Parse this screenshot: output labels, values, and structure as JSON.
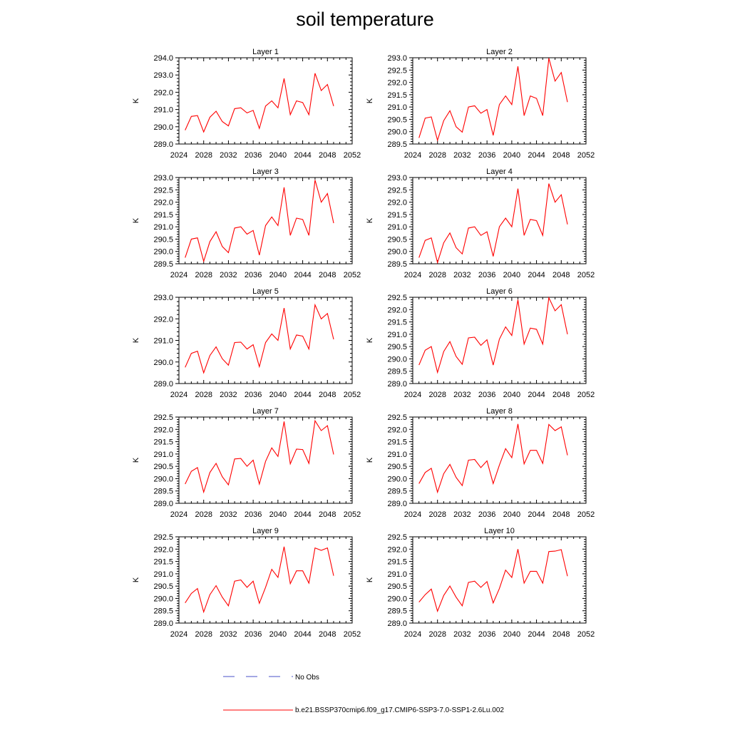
{
  "figure": {
    "title": "soil temperature"
  },
  "legend": {
    "obs_label": "No Obs",
    "model_label": "b.e21.BSSP370cmip6.f09_g17.CMIP6-SSP3-7.0-SSP1-2.6Lu.002",
    "obs_color": "#4a50c8",
    "model_color": "#ff0000"
  },
  "chart_data": [
    {
      "type": "line",
      "title": "Layer 1",
      "ylabel": "K",
      "xlim": [
        2024,
        2052
      ],
      "ylim": [
        289.0,
        294.0
      ],
      "xticks": [
        2024,
        2028,
        2032,
        2036,
        2040,
        2044,
        2048,
        2052
      ],
      "yticks": [
        289.0,
        290.0,
        291.0,
        292.0,
        293.0,
        294.0
      ],
      "x": [
        2025,
        2026,
        2027,
        2028,
        2029,
        2030,
        2031,
        2032,
        2033,
        2034,
        2035,
        2036,
        2037,
        2038,
        2039,
        2040,
        2041,
        2042,
        2043,
        2044,
        2045,
        2046,
        2047,
        2048,
        2049
      ],
      "series": [
        {
          "name": "b.e21.BSSP370cmip6.f09_g17.CMIP6-SSP3-7.0-SSP1-2.6Lu.002",
          "values": [
            289.8,
            290.6,
            290.65,
            289.7,
            290.55,
            290.9,
            290.3,
            290.05,
            291.05,
            291.1,
            290.8,
            290.95,
            289.9,
            291.2,
            291.5,
            291.1,
            292.8,
            290.7,
            291.5,
            291.4,
            290.7,
            293.1,
            292.1,
            292.45,
            291.2
          ]
        }
      ]
    },
    {
      "type": "line",
      "title": "Layer 2",
      "ylabel": "K",
      "xlim": [
        2024,
        2052
      ],
      "ylim": [
        289.5,
        293.0
      ],
      "xticks": [
        2024,
        2028,
        2032,
        2036,
        2040,
        2044,
        2048,
        2052
      ],
      "yticks": [
        289.5,
        290.0,
        290.5,
        291.0,
        291.5,
        292.0,
        292.5,
        293.0
      ],
      "x": [
        2025,
        2026,
        2027,
        2028,
        2029,
        2030,
        2031,
        2032,
        2033,
        2034,
        2035,
        2036,
        2037,
        2038,
        2039,
        2040,
        2041,
        2042,
        2043,
        2044,
        2045,
        2046,
        2047,
        2048,
        2049
      ],
      "series": [
        {
          "name": "b.e21.BSSP370cmip6.f09_g17.CMIP6-SSP3-7.0-SSP1-2.6Lu.002",
          "values": [
            289.75,
            290.55,
            290.6,
            289.65,
            290.45,
            290.85,
            290.2,
            289.98,
            291.0,
            291.05,
            290.75,
            290.9,
            289.85,
            291.1,
            291.45,
            291.1,
            292.65,
            290.65,
            291.45,
            291.35,
            290.65,
            292.98,
            292.05,
            292.4,
            291.2
          ]
        }
      ]
    },
    {
      "type": "line",
      "title": "Layer 3",
      "ylabel": "K",
      "xlim": [
        2024,
        2052
      ],
      "ylim": [
        289.5,
        293.0
      ],
      "xticks": [
        2024,
        2028,
        2032,
        2036,
        2040,
        2044,
        2048,
        2052
      ],
      "yticks": [
        289.5,
        290.0,
        290.5,
        291.0,
        291.5,
        292.0,
        292.5,
        293.0
      ],
      "x": [
        2025,
        2026,
        2027,
        2028,
        2029,
        2030,
        2031,
        2032,
        2033,
        2034,
        2035,
        2036,
        2037,
        2038,
        2039,
        2040,
        2041,
        2042,
        2043,
        2044,
        2045,
        2046,
        2047,
        2048,
        2049
      ],
      "series": [
        {
          "name": "b.e21.BSSP370cmip6.f09_g17.CMIP6-SSP3-7.0-SSP1-2.6Lu.002",
          "values": [
            289.75,
            290.5,
            290.55,
            289.6,
            290.4,
            290.8,
            290.2,
            289.95,
            290.95,
            291.0,
            290.7,
            290.85,
            289.85,
            291.05,
            291.4,
            291.05,
            292.6,
            290.65,
            291.35,
            291.3,
            290.65,
            292.9,
            292.0,
            292.35,
            291.15
          ]
        }
      ]
    },
    {
      "type": "line",
      "title": "Layer 4",
      "ylabel": "K",
      "xlim": [
        2024,
        2052
      ],
      "ylim": [
        289.5,
        293.0
      ],
      "xticks": [
        2024,
        2028,
        2032,
        2036,
        2040,
        2044,
        2048,
        2052
      ],
      "yticks": [
        289.5,
        290.0,
        290.5,
        291.0,
        291.5,
        292.0,
        292.5,
        293.0
      ],
      "x": [
        2025,
        2026,
        2027,
        2028,
        2029,
        2030,
        2031,
        2032,
        2033,
        2034,
        2035,
        2036,
        2037,
        2038,
        2039,
        2040,
        2041,
        2042,
        2043,
        2044,
        2045,
        2046,
        2047,
        2048,
        2049
      ],
      "series": [
        {
          "name": "b.e21.BSSP370cmip6.f09_g17.CMIP6-SSP3-7.0-SSP1-2.6Lu.002",
          "values": [
            289.75,
            290.45,
            290.55,
            289.55,
            290.35,
            290.75,
            290.15,
            289.9,
            290.95,
            291.0,
            290.65,
            290.8,
            289.8,
            291.0,
            291.35,
            291.0,
            292.55,
            290.65,
            291.3,
            291.25,
            290.65,
            292.75,
            292.0,
            292.3,
            291.1
          ]
        }
      ]
    },
    {
      "type": "line",
      "title": "Layer 5",
      "ylabel": "K",
      "xlim": [
        2024,
        2052
      ],
      "ylim": [
        289.0,
        293.0
      ],
      "xticks": [
        2024,
        2028,
        2032,
        2036,
        2040,
        2044,
        2048,
        2052
      ],
      "yticks": [
        289.0,
        290.0,
        291.0,
        292.0,
        293.0
      ],
      "x": [
        2025,
        2026,
        2027,
        2028,
        2029,
        2030,
        2031,
        2032,
        2033,
        2034,
        2035,
        2036,
        2037,
        2038,
        2039,
        2040,
        2041,
        2042,
        2043,
        2044,
        2045,
        2046,
        2047,
        2048,
        2049
      ],
      "series": [
        {
          "name": "b.e21.BSSP370cmip6.f09_g17.CMIP6-SSP3-7.0-SSP1-2.6Lu.002",
          "values": [
            289.75,
            290.4,
            290.5,
            289.5,
            290.3,
            290.7,
            290.15,
            289.85,
            290.9,
            290.92,
            290.6,
            290.8,
            289.78,
            290.9,
            291.3,
            291.0,
            292.5,
            290.6,
            291.25,
            291.2,
            290.6,
            292.65,
            292.0,
            292.25,
            291.05
          ]
        }
      ]
    },
    {
      "type": "line",
      "title": "Layer 6",
      "ylabel": "K",
      "xlim": [
        2024,
        2052
      ],
      "ylim": [
        289.0,
        292.5
      ],
      "xticks": [
        2024,
        2028,
        2032,
        2036,
        2040,
        2044,
        2048,
        2052
      ],
      "yticks": [
        289.0,
        289.5,
        290.0,
        290.5,
        291.0,
        291.5,
        292.0,
        292.5
      ],
      "x": [
        2025,
        2026,
        2027,
        2028,
        2029,
        2030,
        2031,
        2032,
        2033,
        2034,
        2035,
        2036,
        2037,
        2038,
        2039,
        2040,
        2041,
        2042,
        2043,
        2044,
        2045,
        2046,
        2047,
        2048,
        2049
      ],
      "series": [
        {
          "name": "b.e21.BSSP370cmip6.f09_g17.CMIP6-SSP3-7.0-SSP1-2.6Lu.002",
          "values": [
            289.75,
            290.35,
            290.5,
            289.45,
            290.3,
            290.7,
            290.1,
            289.78,
            290.85,
            290.88,
            290.55,
            290.78,
            289.75,
            290.8,
            291.3,
            290.95,
            292.4,
            290.6,
            291.25,
            291.2,
            290.6,
            292.48,
            291.95,
            292.2,
            291.0
          ]
        }
      ]
    },
    {
      "type": "line",
      "title": "Layer 7",
      "ylabel": "K",
      "xlim": [
        2024,
        2052
      ],
      "ylim": [
        289.0,
        292.5
      ],
      "xticks": [
        2024,
        2028,
        2032,
        2036,
        2040,
        2044,
        2048,
        2052
      ],
      "yticks": [
        289.0,
        289.5,
        290.0,
        290.5,
        291.0,
        291.5,
        292.0,
        292.5
      ],
      "x": [
        2025,
        2026,
        2027,
        2028,
        2029,
        2030,
        2031,
        2032,
        2033,
        2034,
        2035,
        2036,
        2037,
        2038,
        2039,
        2040,
        2041,
        2042,
        2043,
        2044,
        2045,
        2046,
        2047,
        2048,
        2049
      ],
      "series": [
        {
          "name": "b.e21.BSSP370cmip6.f09_g17.CMIP6-SSP3-7.0-SSP1-2.6Lu.002",
          "values": [
            289.78,
            290.3,
            290.45,
            289.45,
            290.25,
            290.62,
            290.08,
            289.75,
            290.8,
            290.82,
            290.5,
            290.75,
            289.78,
            290.7,
            291.25,
            290.9,
            292.32,
            290.6,
            291.2,
            291.18,
            290.62,
            292.35,
            291.95,
            292.15,
            290.98
          ]
        }
      ]
    },
    {
      "type": "line",
      "title": "Layer 8",
      "ylabel": "K",
      "xlim": [
        2024,
        2052
      ],
      "ylim": [
        289.0,
        292.5
      ],
      "xticks": [
        2024,
        2028,
        2032,
        2036,
        2040,
        2044,
        2048,
        2052
      ],
      "yticks": [
        289.0,
        289.5,
        290.0,
        290.5,
        291.0,
        291.5,
        292.0,
        292.5
      ],
      "x": [
        2025,
        2026,
        2027,
        2028,
        2029,
        2030,
        2031,
        2032,
        2033,
        2034,
        2035,
        2036,
        2037,
        2038,
        2039,
        2040,
        2041,
        2042,
        2043,
        2044,
        2045,
        2046,
        2047,
        2048,
        2049
      ],
      "series": [
        {
          "name": "b.e21.BSSP370cmip6.f09_g17.CMIP6-SSP3-7.0-SSP1-2.6Lu.002",
          "values": [
            289.8,
            290.25,
            290.42,
            289.45,
            290.2,
            290.58,
            290.05,
            289.72,
            290.75,
            290.78,
            290.45,
            290.72,
            289.8,
            290.55,
            291.22,
            290.85,
            292.22,
            290.6,
            291.15,
            291.15,
            290.62,
            292.2,
            291.95,
            292.1,
            290.95
          ]
        }
      ]
    },
    {
      "type": "line",
      "title": "Layer 9",
      "ylabel": "K",
      "xlim": [
        2024,
        2052
      ],
      "ylim": [
        289.0,
        292.5
      ],
      "xticks": [
        2024,
        2028,
        2032,
        2036,
        2040,
        2044,
        2048,
        2052
      ],
      "yticks": [
        289.0,
        289.5,
        290.0,
        290.5,
        291.0,
        291.5,
        292.0,
        292.5
      ],
      "x": [
        2025,
        2026,
        2027,
        2028,
        2029,
        2030,
        2031,
        2032,
        2033,
        2034,
        2035,
        2036,
        2037,
        2038,
        2039,
        2040,
        2041,
        2042,
        2043,
        2044,
        2045,
        2046,
        2047,
        2048,
        2049
      ],
      "series": [
        {
          "name": "b.e21.BSSP370cmip6.f09_g17.CMIP6-SSP3-7.0-SSP1-2.6Lu.002",
          "values": [
            289.82,
            290.2,
            290.4,
            289.45,
            290.15,
            290.52,
            290.05,
            289.7,
            290.7,
            290.75,
            290.45,
            290.7,
            289.8,
            290.45,
            291.18,
            290.85,
            292.1,
            290.6,
            291.12,
            291.12,
            290.62,
            292.05,
            291.95,
            292.05,
            290.92
          ]
        }
      ]
    },
    {
      "type": "line",
      "title": "Layer 10",
      "ylabel": "K",
      "xlim": [
        2024,
        2052
      ],
      "ylim": [
        289.0,
        292.5
      ],
      "xticks": [
        2024,
        2028,
        2032,
        2036,
        2040,
        2044,
        2048,
        2052
      ],
      "yticks": [
        289.0,
        289.5,
        290.0,
        290.5,
        291.0,
        291.5,
        292.0,
        292.5
      ],
      "x": [
        2025,
        2026,
        2027,
        2028,
        2029,
        2030,
        2031,
        2032,
        2033,
        2034,
        2035,
        2036,
        2037,
        2038,
        2039,
        2040,
        2041,
        2042,
        2043,
        2044,
        2045,
        2046,
        2047,
        2048,
        2049
      ],
      "series": [
        {
          "name": "b.e21.BSSP370cmip6.f09_g17.CMIP6-SSP3-7.0-SSP1-2.6Lu.002",
          "values": [
            289.85,
            290.15,
            290.38,
            289.48,
            290.12,
            290.5,
            290.05,
            289.7,
            290.65,
            290.7,
            290.45,
            290.68,
            289.82,
            290.4,
            291.15,
            290.85,
            292.0,
            290.62,
            291.1,
            291.1,
            290.62,
            291.9,
            291.92,
            291.98,
            290.9
          ]
        }
      ]
    }
  ]
}
